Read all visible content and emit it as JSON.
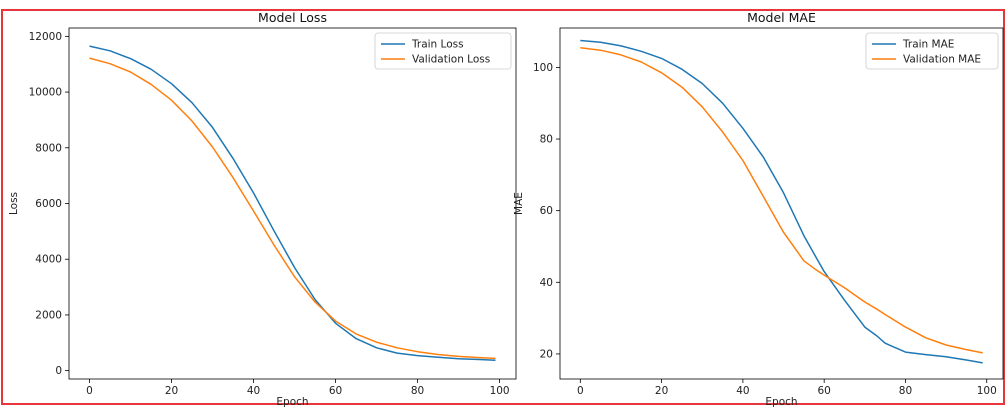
{
  "colors": {
    "train": "#1f77b4",
    "validation": "#ff7f0e",
    "frame": "#e8353b"
  },
  "chart_data": [
    {
      "type": "line",
      "title": "Model Loss",
      "xlabel": "Epoch",
      "ylabel": "Loss",
      "xlim": [
        -5,
        104
      ],
      "ylim": [
        -300,
        12300
      ],
      "xticks": [
        0,
        20,
        40,
        60,
        80,
        100
      ],
      "yticks": [
        0,
        2000,
        4000,
        6000,
        8000,
        10000,
        12000
      ],
      "grid": false,
      "legend": "top-right",
      "x": [
        0,
        5,
        10,
        15,
        20,
        25,
        30,
        35,
        40,
        45,
        50,
        55,
        60,
        65,
        70,
        75,
        80,
        85,
        90,
        95,
        99
      ],
      "series": [
        {
          "name": "Train Loss",
          "color": "#1f77b4",
          "values": [
            11650,
            11480,
            11200,
            10820,
            10300,
            9620,
            8730,
            7620,
            6380,
            5020,
            3700,
            2550,
            1700,
            1150,
            820,
            630,
            540,
            480,
            430,
            400,
            370
          ]
        },
        {
          "name": "Validation Loss",
          "color": "#ff7f0e",
          "values": [
            11220,
            11020,
            10720,
            10280,
            9710,
            8960,
            8030,
            6930,
            5730,
            4510,
            3370,
            2460,
            1780,
            1320,
            1020,
            820,
            680,
            580,
            510,
            470,
            440
          ]
        }
      ]
    },
    {
      "type": "line",
      "title": "Model MAE",
      "xlabel": "Epoch",
      "ylabel": "MAE",
      "xlim": [
        -5,
        104
      ],
      "ylim": [
        13,
        111
      ],
      "xticks": [
        0,
        20,
        40,
        60,
        80,
        100
      ],
      "yticks": [
        20,
        40,
        60,
        80,
        100
      ],
      "grid": false,
      "legend": "top-right",
      "x": [
        0,
        5,
        10,
        15,
        20,
        25,
        30,
        35,
        40,
        45,
        50,
        55,
        58,
        60,
        65,
        70,
        73,
        75,
        80,
        85,
        90,
        95,
        99
      ],
      "series": [
        {
          "name": "Train MAE",
          "color": "#1f77b4",
          "values": [
            107.5,
            107,
            106,
            104.5,
            102.5,
            99.5,
            95.5,
            90,
            83,
            75,
            65,
            53,
            47,
            43,
            35,
            27.5,
            25,
            23,
            20.5,
            19.8,
            19.2,
            18.3,
            17.5
          ]
        },
        {
          "name": "Validation MAE",
          "color": "#ff7f0e",
          "values": [
            105.5,
            104.8,
            103.5,
            101.5,
            98.5,
            94.5,
            89,
            82,
            74,
            64,
            54,
            46,
            43.5,
            42,
            38.5,
            34.5,
            32.5,
            31,
            27.5,
            24.5,
            22.5,
            21.2,
            20.3
          ]
        }
      ]
    }
  ]
}
